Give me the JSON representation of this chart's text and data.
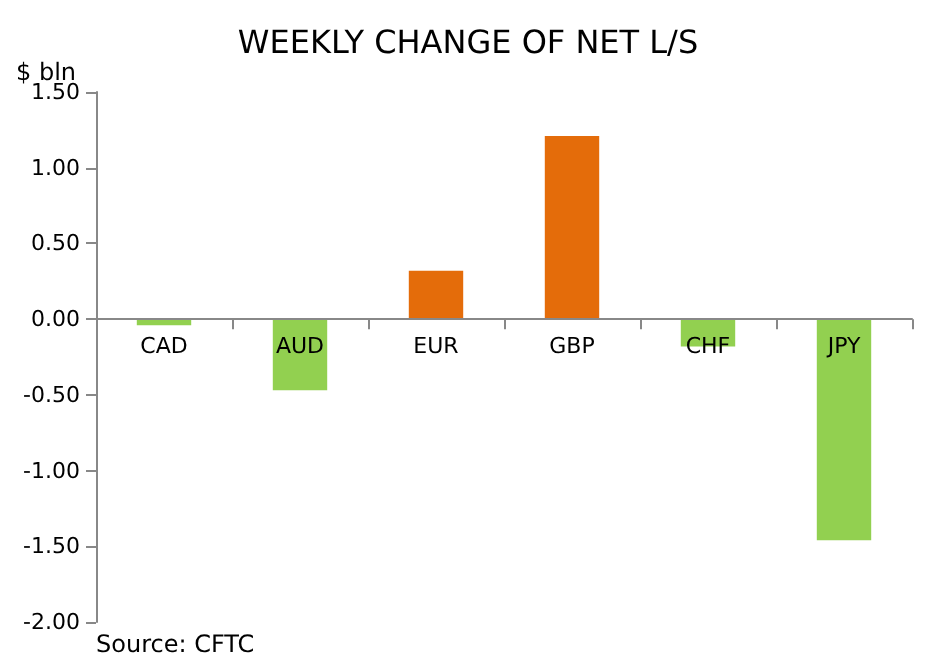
{
  "chart_data": {
    "type": "bar",
    "title": "WEEKLY CHANGE OF NET L/S",
    "ylabel": "$ bln",
    "categories": [
      "CAD",
      "AUD",
      "EUR",
      "GBP",
      "CHF",
      "JPY"
    ],
    "values": [
      -0.04,
      -0.47,
      0.32,
      1.21,
      -0.18,
      -1.46
    ],
    "colors": [
      "#92d050",
      "#92d050",
      "#e46c0a",
      "#e46c0a",
      "#92d050",
      "#92d050"
    ],
    "ylim": [
      -2,
      1.5
    ],
    "yticks": [
      {
        "value": -2,
        "label": "-2.00"
      },
      {
        "value": -1.5,
        "label": "-1.50"
      },
      {
        "value": -1,
        "label": "-1.00"
      },
      {
        "value": -0.5,
        "label": "-0.50"
      },
      {
        "value": 0,
        "label": "0.00"
      },
      {
        "value": 0.5,
        "label": "0.50"
      },
      {
        "value": 1,
        "label": "1.00"
      },
      {
        "value": 1.5,
        "label": "1.50"
      }
    ],
    "grid": false,
    "annotations": [
      "Source: CFTC"
    ]
  }
}
